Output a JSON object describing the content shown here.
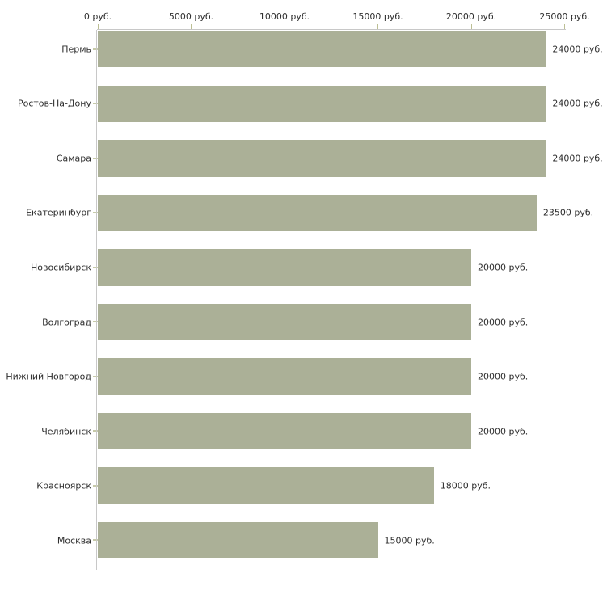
{
  "chart_data": {
    "type": "bar",
    "orientation": "horizontal",
    "title": "",
    "xlabel": "",
    "ylabel": "",
    "unit": "руб.",
    "xlim": [
      0,
      25000
    ],
    "grid": false,
    "legend": null,
    "categories": [
      "Пермь",
      "Ростов-На-Дону",
      "Самара",
      "Екатеринбург",
      "Новосибирск",
      "Волгоград",
      "Нижний Новгород",
      "Челябинск",
      "Красноярск",
      "Москва"
    ],
    "values": [
      24000,
      24000,
      24000,
      23500,
      20000,
      20000,
      20000,
      20000,
      18000,
      15000
    ],
    "value_labels": [
      "24000 руб.",
      "24000 руб.",
      "24000 руб.",
      "23500 руб.",
      "20000 руб.",
      "20000 руб.",
      "20000 руб.",
      "20000 руб.",
      "18000 руб.",
      "15000 руб."
    ],
    "x_ticks": [
      {
        "value": 0,
        "label": "0 руб."
      },
      {
        "value": 5000,
        "label": "5000 руб."
      },
      {
        "value": 10000,
        "label": "10000 руб."
      },
      {
        "value": 15000,
        "label": "15000 руб."
      },
      {
        "value": 20000,
        "label": "20000 руб."
      },
      {
        "value": 25000,
        "label": "25000 руб."
      }
    ],
    "colors": {
      "bar": "#abb097",
      "axis_line": "#c8c8c8",
      "tick": "#bcbf94",
      "category_tick": "#c6c9a8",
      "text": "#2e2e2e",
      "background": "#ffffff"
    }
  }
}
